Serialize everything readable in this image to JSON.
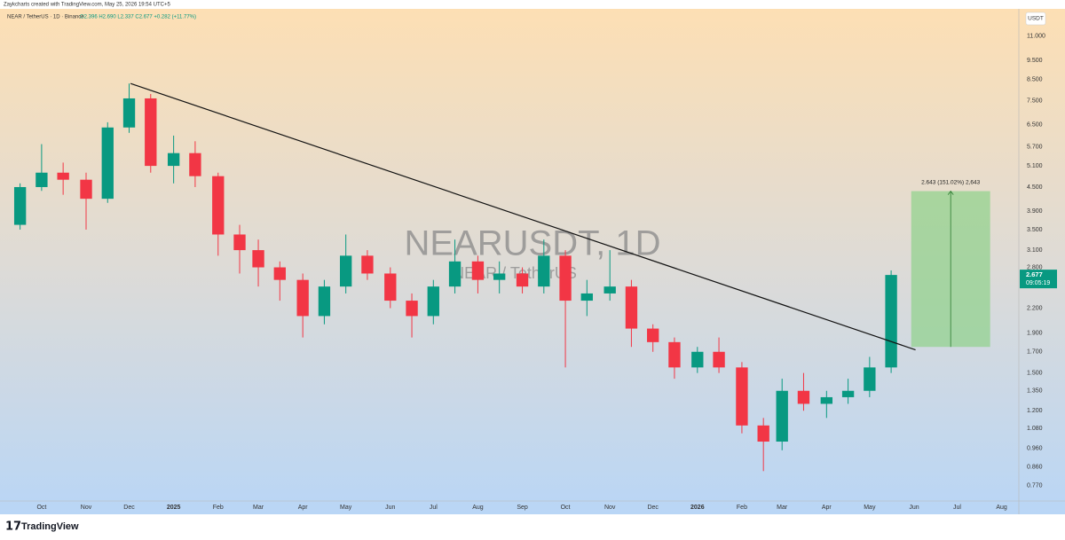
{
  "header": {
    "credit": "Zaykcharts created with TradingView.com, May 25, 2026 19:54 UTC+5",
    "symbol": "NEAR / TetherUS · 1D · Binance",
    "ohlc": "O2.396 H2.690 L2.337 C2.677 +0.282 (+11.77%)"
  },
  "footer": {
    "brand": "TradingView"
  },
  "chart_data": {
    "type": "candlestick",
    "title": "NEARUSDT, 1D",
    "subtitle": "NEAR / TetherUS",
    "currency": "USDT",
    "countdown": "09:05:19",
    "log_scale": true,
    "grid": false,
    "up_color": "#089981",
    "down_color": "#f23645",
    "x": [
      "2024-09-16",
      "2024-10-01",
      "2024-10-16",
      "2024-11-01",
      "2024-11-16",
      "2024-12-01",
      "2024-12-16",
      "2025-01-01",
      "2025-01-16",
      "2025-02-01",
      "2025-02-16",
      "2025-03-01",
      "2025-03-16",
      "2025-04-01",
      "2025-04-16",
      "2025-05-01",
      "2025-05-16",
      "2025-06-01",
      "2025-06-16",
      "2025-07-01",
      "2025-07-16",
      "2025-08-01",
      "2025-08-16",
      "2025-09-01",
      "2025-09-16",
      "2025-10-01",
      "2025-10-16",
      "2025-11-01",
      "2025-11-16",
      "2025-12-01",
      "2025-12-16",
      "2026-01-01",
      "2026-01-16",
      "2026-02-01",
      "2026-02-16",
      "2026-03-01",
      "2026-03-16",
      "2026-04-01",
      "2026-04-16",
      "2026-05-01",
      "2026-05-16"
    ],
    "open": [
      3.6,
      4.5,
      4.9,
      4.7,
      4.2,
      6.4,
      7.6,
      5.1,
      5.5,
      4.8,
      3.4,
      3.1,
      2.8,
      2.6,
      2.1,
      2.5,
      3.0,
      2.7,
      2.3,
      2.1,
      2.5,
      2.9,
      2.6,
      2.7,
      2.5,
      3.0,
      2.3,
      2.4,
      2.5,
      1.95,
      1.8,
      1.55,
      1.7,
      1.55,
      1.1,
      1.0,
      1.35,
      1.25,
      1.3,
      1.35,
      1.55
    ],
    "high": [
      4.6,
      5.8,
      5.2,
      4.9,
      6.6,
      8.3,
      7.8,
      6.1,
      5.9,
      4.9,
      3.6,
      3.3,
      2.9,
      2.7,
      2.6,
      3.4,
      3.1,
      2.8,
      2.4,
      2.6,
      3.3,
      3.0,
      2.9,
      2.8,
      3.3,
      3.1,
      2.6,
      3.1,
      2.6,
      2.0,
      1.85,
      1.75,
      1.85,
      1.6,
      1.15,
      1.45,
      1.5,
      1.35,
      1.45,
      1.65,
      2.75
    ],
    "low": [
      3.5,
      4.4,
      4.3,
      3.5,
      4.1,
      6.2,
      4.9,
      4.6,
      4.5,
      3.0,
      2.7,
      2.5,
      2.3,
      1.85,
      2.0,
      2.4,
      2.6,
      2.2,
      1.85,
      2.0,
      2.4,
      2.4,
      2.4,
      2.4,
      2.4,
      1.55,
      2.1,
      2.3,
      1.75,
      1.7,
      1.45,
      1.5,
      1.5,
      1.05,
      0.84,
      0.95,
      1.2,
      1.15,
      1.25,
      1.3,
      1.5
    ],
    "close": [
      4.5,
      4.9,
      4.7,
      4.2,
      6.4,
      7.6,
      5.1,
      5.5,
      4.8,
      3.4,
      3.1,
      2.8,
      2.6,
      2.1,
      2.5,
      3.0,
      2.7,
      2.3,
      2.1,
      2.5,
      2.9,
      2.6,
      2.7,
      2.5,
      3.0,
      2.3,
      2.4,
      2.5,
      1.95,
      1.8,
      1.55,
      1.7,
      1.55,
      1.1,
      1.0,
      1.35,
      1.25,
      1.3,
      1.35,
      1.55,
      2.677
    ],
    "xlim": [
      "2024-09-02",
      "2026-08-13"
    ],
    "xticks": [
      {
        "value": "2024-10-01",
        "label": "Oct"
      },
      {
        "value": "2024-11-01",
        "label": "Nov"
      },
      {
        "value": "2024-12-01",
        "label": "Dec"
      },
      {
        "value": "2025-01-01",
        "label": "2025"
      },
      {
        "value": "2025-02-01",
        "label": "Feb"
      },
      {
        "value": "2025-03-01",
        "label": "Mar"
      },
      {
        "value": "2025-04-01",
        "label": "Apr"
      },
      {
        "value": "2025-05-01",
        "label": "May"
      },
      {
        "value": "2025-06-01",
        "label": "Jun"
      },
      {
        "value": "2025-07-01",
        "label": "Jul"
      },
      {
        "value": "2025-08-01",
        "label": "Aug"
      },
      {
        "value": "2025-09-01",
        "label": "Sep"
      },
      {
        "value": "2025-10-01",
        "label": "Oct"
      },
      {
        "value": "2025-11-01",
        "label": "Nov"
      },
      {
        "value": "2025-12-01",
        "label": "Dec"
      },
      {
        "value": "2026-01-01",
        "label": "2026"
      },
      {
        "value": "2026-02-01",
        "label": "Feb"
      },
      {
        "value": "2026-03-01",
        "label": "Mar"
      },
      {
        "value": "2026-04-01",
        "label": "Apr"
      },
      {
        "value": "2026-05-01",
        "label": "May"
      },
      {
        "value": "2026-06-01",
        "label": "Jun"
      },
      {
        "value": "2026-07-01",
        "label": "Jul"
      },
      {
        "value": "2026-08-01",
        "label": "Aug"
      }
    ],
    "ylim": [
      0.704,
      12.9
    ],
    "yticks": [
      {
        "value": 11,
        "label": "11.000"
      },
      {
        "value": 9.5,
        "label": "9.500"
      },
      {
        "value": 8.5,
        "label": "8.500"
      },
      {
        "value": 7.5,
        "label": "7.500"
      },
      {
        "value": 6.5,
        "label": "6.500"
      },
      {
        "value": 5.7,
        "label": "5.700"
      },
      {
        "value": 5.1,
        "label": "5.100"
      },
      {
        "value": 4.5,
        "label": "4.500"
      },
      {
        "value": 3.9,
        "label": "3.900"
      },
      {
        "value": 3.5,
        "label": "3.500"
      },
      {
        "value": 3.1,
        "label": "3.100"
      },
      {
        "value": 2.8,
        "label": "2.800"
      },
      {
        "value": 2.2,
        "label": "2.200"
      },
      {
        "value": 1.9,
        "label": "1.900"
      },
      {
        "value": 1.7,
        "label": "1.700"
      },
      {
        "value": 1.5,
        "label": "1.500"
      },
      {
        "value": 1.35,
        "label": "1.350"
      },
      {
        "value": 1.2,
        "label": "1.200"
      },
      {
        "value": 1.08,
        "label": "1.080"
      },
      {
        "value": 0.96,
        "label": "0.960"
      },
      {
        "value": 0.86,
        "label": "0.860"
      },
      {
        "value": 0.77,
        "label": "0.770"
      }
    ],
    "trendline": {
      "x": [
        "2024-12-02",
        "2026-06-02"
      ],
      "y": [
        8.3,
        1.72
      ]
    },
    "target": {
      "x": [
        "2026-05-30",
        "2026-07-24"
      ],
      "low": 1.75,
      "high": 4.393,
      "label": "2.643 (151.02%) 2,643"
    }
  }
}
